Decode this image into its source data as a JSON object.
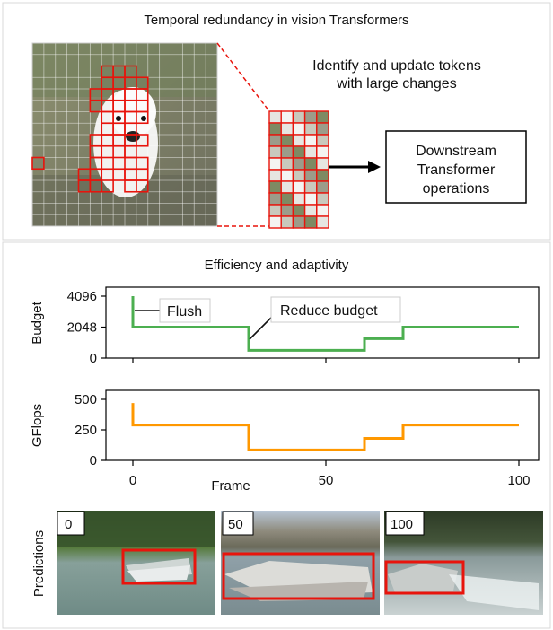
{
  "top_section": {
    "title": "Temporal redundancy in vision Transformers",
    "caption": [
      "Identify and update tokens",
      "with large changes"
    ],
    "box_label": [
      "Downstream",
      "Transformer",
      "operations"
    ]
  },
  "bottom_section": {
    "title": "Efficiency and adaptivity",
    "annotations": {
      "flush": "Flush",
      "reduce": "Reduce budget"
    }
  },
  "colors": {
    "budget_line": "#4caf50",
    "gflops_line": "#ff9800",
    "token_highlight": "#e8140c",
    "boat_box": "#e8140c"
  },
  "chart_data": [
    {
      "type": "line",
      "ylabel": "Budget",
      "xlabel": "",
      "ylim": [
        0,
        4096
      ],
      "xlim": [
        0,
        100
      ],
      "yticks": [
        "0",
        "2048",
        "4096"
      ],
      "x": [
        0,
        0,
        30,
        30,
        60,
        60,
        70,
        70,
        100
      ],
      "y": [
        4096,
        2048,
        2048,
        512,
        512,
        1280,
        1280,
        2048,
        2048
      ]
    },
    {
      "type": "line",
      "ylabel": "GFlops",
      "xlabel": "Frame",
      "ylim": [
        0,
        500
      ],
      "xlim": [
        0,
        100
      ],
      "yticks": [
        "0",
        "250",
        "500"
      ],
      "xticks": [
        "0",
        "50",
        "100"
      ],
      "x": [
        0,
        0,
        30,
        30,
        60,
        60,
        70,
        70,
        100
      ],
      "y": [
        470,
        290,
        290,
        85,
        85,
        180,
        180,
        290,
        290
      ]
    }
  ],
  "predictions": {
    "ylabel": "Predictions",
    "frames": [
      {
        "label": "0"
      },
      {
        "label": "50"
      },
      {
        "label": "100"
      }
    ]
  }
}
